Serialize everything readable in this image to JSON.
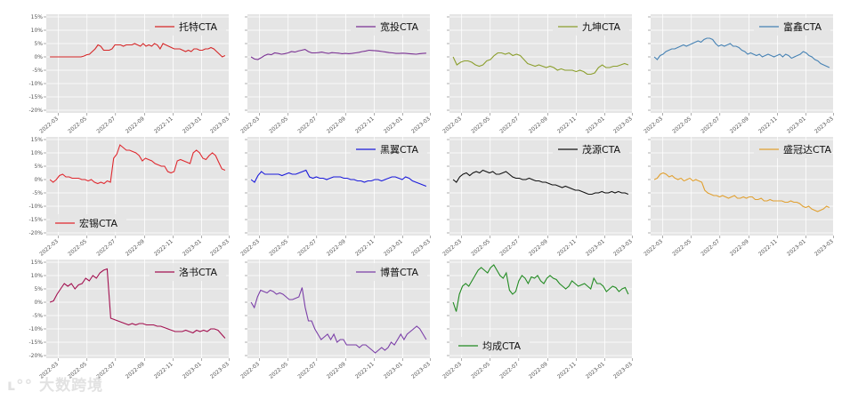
{
  "watermark": "大数跨境",
  "y_ticks": [
    -20,
    -15,
    -10,
    -5,
    0,
    5,
    10,
    15
  ],
  "x_ticks": [
    "2022-03",
    "2022-05",
    "2022-07",
    "2022-09",
    "2022-11",
    "2023-01",
    "2023-03"
  ],
  "chart_data": [
    {
      "type": "line",
      "series_name": "托特CTA",
      "color": "#d62728",
      "legend": "top-right",
      "ylim": [
        -21,
        16
      ],
      "grid": true,
      "x_start": "2022-02-03",
      "x_end": "2023-02-28",
      "values": [
        0,
        0,
        0,
        0,
        0,
        0,
        0,
        0,
        0,
        0,
        0,
        0,
        0.3,
        0.8,
        1,
        2,
        3,
        4.5,
        4,
        2.5,
        2.5,
        2.5,
        3,
        4.5,
        4.5,
        4.5,
        4,
        4.5,
        4.5,
        4.5,
        5,
        4.5,
        4,
        5,
        4,
        4.5,
        4,
        5,
        4.5,
        3,
        5,
        4.5,
        4,
        3.5,
        3,
        3,
        3,
        2.5,
        2,
        2.5,
        2,
        3,
        3,
        2.5,
        2.5,
        3,
        3,
        3.5,
        3,
        2,
        1,
        0,
        0.5
      ]
    },
    {
      "type": "line",
      "series_name": "宽投CTA",
      "color": "#7b3294",
      "legend": "top-right",
      "ylim": [
        -21,
        16
      ],
      "grid": true,
      "x_start": "2022-02-03",
      "x_end": "2023-02-28",
      "values": [
        0,
        -0.8,
        -1,
        -0.3,
        0.5,
        1,
        0.8,
        1.5,
        1.3,
        1,
        1.2,
        1.5,
        2,
        1.8,
        2.2,
        2.5,
        2.8,
        2,
        1.5,
        1.5,
        1.6,
        1.8,
        1.5,
        1.3,
        1.6,
        1.5,
        1.4,
        1.2,
        1.3,
        1.2,
        1.3,
        1.5,
        1.7,
        2,
        2.2,
        2.5,
        2.4,
        2.3,
        2.2,
        2,
        1.8,
        1.6,
        1.5,
        1.3,
        1.3,
        1.4,
        1.3,
        1.2,
        1.1,
        1,
        1.2,
        1.3,
        1.4
      ]
    },
    {
      "type": "line",
      "series_name": "九坤CTA",
      "color": "#8c9f2e",
      "legend": "top-right",
      "ylim": [
        -21,
        16
      ],
      "grid": true,
      "x_start": "2022-02-03",
      "x_end": "2023-02-28",
      "values": [
        0,
        -3,
        -2,
        -1.5,
        -1.5,
        -2,
        -3,
        -3.5,
        -3,
        -1.5,
        -1,
        0.5,
        1.5,
        1.5,
        1,
        1.5,
        0.5,
        1,
        0.5,
        -1,
        -2.5,
        -3,
        -3.5,
        -3,
        -3.5,
        -4,
        -3.5,
        -4,
        -5,
        -4.5,
        -5,
        -5,
        -5,
        -5.5,
        -5,
        -5.5,
        -6.5,
        -6.5,
        -6,
        -4,
        -3,
        -4,
        -4,
        -3.5,
        -3.5,
        -3,
        -2.5,
        -3
      ]
    },
    {
      "type": "line",
      "series_name": "富鑫CTA",
      "color": "#4682b4",
      "legend": "top-right",
      "ylim": [
        -21,
        16
      ],
      "grid": true,
      "x_start": "2022-02-03",
      "x_end": "2023-02-28",
      "values": [
        0,
        -1,
        0.5,
        1,
        2,
        2.5,
        3,
        3,
        3.5,
        4,
        4.5,
        4,
        4.5,
        5,
        5.5,
        6,
        5.5,
        6.5,
        7,
        7,
        6.5,
        5,
        4,
        4.5,
        4,
        4.5,
        5,
        4,
        4,
        3.5,
        2.5,
        2,
        1,
        1.5,
        1,
        0.5,
        1,
        0,
        0.5,
        1,
        0.5,
        0,
        0.5,
        1,
        0,
        1,
        0.5,
        -0.5,
        0,
        0.5,
        1,
        2,
        1.5,
        0.5,
        0,
        -1,
        -1.5,
        -2.5,
        -3,
        -3.5,
        -4
      ]
    },
    {
      "type": "line",
      "series_name": "宏锡CTA",
      "color": "#e0282e",
      "legend": "lower-left",
      "ylim": [
        -21,
        16
      ],
      "grid": true,
      "x_start": "2022-02-03",
      "x_end": "2023-02-28",
      "values": [
        0,
        -1,
        0,
        1.5,
        2,
        1,
        1,
        0.5,
        0.5,
        0.5,
        0,
        0,
        -0.5,
        0,
        -1,
        -1.5,
        -1,
        -1.5,
        -0.5,
        -1,
        8,
        9.5,
        13,
        12,
        11,
        11,
        10.5,
        10,
        9,
        7,
        8,
        7.5,
        7,
        6,
        5.5,
        5,
        5,
        3,
        2.5,
        3,
        7,
        7.5,
        7,
        6.5,
        6,
        10,
        11,
        10,
        8,
        7.5,
        9,
        10,
        9,
        6.5,
        4,
        3.5
      ]
    },
    {
      "type": "line",
      "series_name": "黑翼CTA",
      "color": "#1a1adb",
      "legend": "top-right",
      "ylim": [
        -21,
        16
      ],
      "grid": true,
      "x_start": "2022-02-03",
      "x_end": "2023-02-28",
      "values": [
        0,
        -1,
        1.5,
        3,
        2,
        2,
        2,
        2,
        2,
        1.5,
        2,
        2.5,
        2,
        2,
        2.5,
        3,
        3.5,
        1,
        0.5,
        1,
        0.5,
        0.5,
        0,
        0.5,
        1,
        1,
        1,
        0.5,
        0.5,
        0,
        0,
        -0.5,
        -0.5,
        -1,
        -0.5,
        -0.5,
        0,
        0,
        -0.5,
        0,
        0.5,
        1,
        1,
        0.5,
        0,
        1,
        0.5,
        -0.5,
        -1,
        -1.5,
        -2,
        -2.5
      ]
    },
    {
      "type": "line",
      "series_name": "茂源CTA",
      "color": "#111111",
      "legend": "top-right",
      "ylim": [
        -21,
        16
      ],
      "grid": true,
      "x_start": "2022-02-03",
      "x_end": "2023-02-28",
      "values": [
        0,
        -1,
        1,
        2,
        2.5,
        1.5,
        2.5,
        3,
        2.5,
        3.5,
        3,
        2.5,
        3,
        2,
        2,
        2.5,
        3,
        2,
        1,
        0.5,
        0.5,
        0,
        0,
        0.5,
        0,
        -0.5,
        -0.5,
        -1,
        -1,
        -1.5,
        -2,
        -2,
        -2.5,
        -3,
        -2.5,
        -3,
        -3.5,
        -4,
        -4,
        -4.5,
        -5,
        -5.5,
        -5.5,
        -5,
        -5,
        -4.5,
        -5,
        -5,
        -4.5,
        -5,
        -4.5,
        -5,
        -5,
        -5.5
      ]
    },
    {
      "type": "line",
      "series_name": "盛冠达CTA",
      "color": "#e1a030",
      "legend": "top-right",
      "ylim": [
        -21,
        16
      ],
      "grid": true,
      "x_start": "2022-02-03",
      "x_end": "2023-02-28",
      "values": [
        0,
        0.5,
        2,
        2.5,
        2,
        1,
        1.5,
        0.5,
        0,
        0.5,
        -0.5,
        0,
        0.5,
        -0.5,
        0,
        -0.5,
        -1,
        -4,
        -5,
        -5.5,
        -6,
        -6,
        -6.5,
        -6,
        -6.5,
        -7,
        -6.5,
        -6,
        -7,
        -7,
        -6.5,
        -7,
        -6.5,
        -6.5,
        -7.5,
        -7.5,
        -7,
        -8,
        -8,
        -7.5,
        -8,
        -8,
        -8,
        -8,
        -8.5,
        -8.5,
        -8,
        -8.5,
        -8.5,
        -9,
        -10,
        -10.5,
        -10,
        -11,
        -11.5,
        -12,
        -11.5,
        -11,
        -10,
        -10.5
      ]
    },
    {
      "type": "line",
      "series_name": "洛书CTA",
      "color": "#a31050",
      "legend": "top-right",
      "ylim": [
        -21,
        16
      ],
      "grid": true,
      "x_start": "2022-02-03",
      "x_end": "2023-02-28",
      "values": [
        0,
        0.5,
        3,
        5,
        7,
        6,
        7,
        5,
        6.5,
        7,
        9,
        8,
        10,
        9,
        11,
        12,
        12.5,
        -6,
        -6.5,
        -7,
        -7.5,
        -8,
        -8.5,
        -8,
        -8.5,
        -8,
        -8,
        -8.5,
        -8.5,
        -8.5,
        -9,
        -9,
        -9.5,
        -10,
        -10.5,
        -11,
        -11,
        -11,
        -10.5,
        -11,
        -11.5,
        -10.5,
        -11,
        -10.5,
        -11,
        -10,
        -10,
        -10.5,
        -12,
        -13.5
      ]
    },
    {
      "type": "line",
      "series_name": "博普CTA",
      "color": "#7b3fa8",
      "legend": "top-right",
      "ylim": [
        -21,
        16
      ],
      "grid": true,
      "x_start": "2022-02-03",
      "x_end": "2023-02-28",
      "values": [
        0,
        -2,
        2,
        4.5,
        4,
        3.5,
        4.5,
        4,
        3,
        3.5,
        3,
        2,
        1,
        1,
        1.5,
        2,
        5.5,
        -2,
        -7,
        -7,
        -10,
        -12,
        -14,
        -13,
        -12,
        -14,
        -12,
        -15,
        -14,
        -14,
        -16,
        -16,
        -16,
        -16,
        -17,
        -16,
        -16,
        -17,
        -18,
        -19,
        -18,
        -17,
        -18,
        -17,
        -15,
        -16,
        -14,
        -12,
        -14,
        -12,
        -11,
        -10,
        -9,
        -10,
        -12,
        -14
      ]
    },
    {
      "type": "line",
      "series_name": "均成CTA",
      "color": "#228b22",
      "legend": "lower-left",
      "ylim": [
        -21,
        16
      ],
      "grid": true,
      "x_start": "2022-02-03",
      "x_end": "2023-02-28",
      "values": [
        0,
        -3.5,
        3,
        6,
        7,
        6,
        8,
        10,
        12,
        13,
        12,
        11,
        13,
        14,
        12,
        10,
        9,
        11,
        4.5,
        3,
        4,
        8,
        10,
        9,
        7,
        9.5,
        9,
        10,
        8,
        7,
        9,
        10,
        9,
        8.5,
        7,
        6,
        5,
        6,
        8,
        7,
        6,
        6.5,
        7,
        6,
        5,
        9,
        7,
        7,
        6,
        4,
        5,
        6,
        5.5,
        4,
        5,
        5.5,
        3
      ]
    }
  ]
}
